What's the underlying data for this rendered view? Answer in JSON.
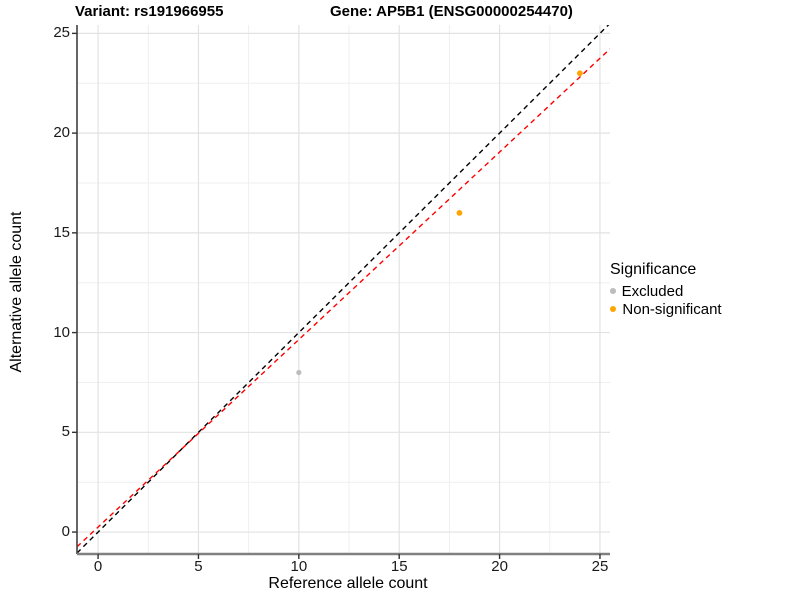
{
  "title": {
    "variant": "Variant: rs191966955",
    "gene": "Gene: AP5B1 (ENSG00000254470)"
  },
  "axes": {
    "x": {
      "label": "Reference allele count",
      "ticks": [
        0,
        5,
        10,
        15,
        20,
        25
      ],
      "range": [
        -1.05,
        25.5
      ]
    },
    "y": {
      "label": "Alternative allele count",
      "ticks": [
        0,
        5,
        10,
        15,
        20,
        25
      ],
      "range": [
        -1.1,
        25.42
      ]
    },
    "minor_ticks": [
      2.5,
      7.5,
      12.5,
      17.5,
      22.5
    ]
  },
  "legend": {
    "title": "Significance",
    "items": [
      {
        "label": "Excluded",
        "color": "#bdbdbd",
        "dot_radius": 2.8
      },
      {
        "label": "Non-significant",
        "color": "#ffa500",
        "dot_radius": 3.2
      }
    ]
  },
  "colors": {
    "grid_major": "#e2e2e2",
    "grid_minor": "#efefef",
    "axis_line_left": "#404040",
    "axis_line_bottom": "#808080",
    "tick_mark": "#333333",
    "identity_line": "#000000",
    "fitted_line": "#ff0000",
    "excluded_point": "#bdbdbd",
    "nonsignificant_point": "#ffa500"
  },
  "chart_data": {
    "type": "scatter",
    "title": "Variant: rs191966955    Gene: AP5B1 (ENSG00000254470)",
    "xlabel": "Reference allele count",
    "ylabel": "Alternative allele count",
    "xlim": [
      -1.05,
      25.5
    ],
    "ylim": [
      -1.1,
      25.42
    ],
    "x_ticks": [
      0,
      5,
      10,
      15,
      20,
      25
    ],
    "y_ticks": [
      0,
      5,
      10,
      15,
      20,
      25
    ],
    "grid": "major+minor",
    "legend_position": "right",
    "legend_title": "Significance",
    "series": [
      {
        "name": "Excluded",
        "color": "#bdbdbd",
        "radius": 2.6,
        "points": [
          {
            "x": 10,
            "y": 8
          }
        ]
      },
      {
        "name": "Non-significant",
        "color": "#ffa500",
        "radius": 2.9,
        "points": [
          {
            "x": 18,
            "y": 16
          },
          {
            "x": 24,
            "y": 23
          }
        ]
      }
    ],
    "reference_lines": [
      {
        "name": "identity",
        "slope": 1,
        "intercept": 0,
        "color": "#000000",
        "style": "dashed"
      },
      {
        "name": "fitted-ratio",
        "slope": 0.94,
        "intercept": 0.25,
        "color": "#ff0000",
        "style": "dashed"
      }
    ]
  }
}
